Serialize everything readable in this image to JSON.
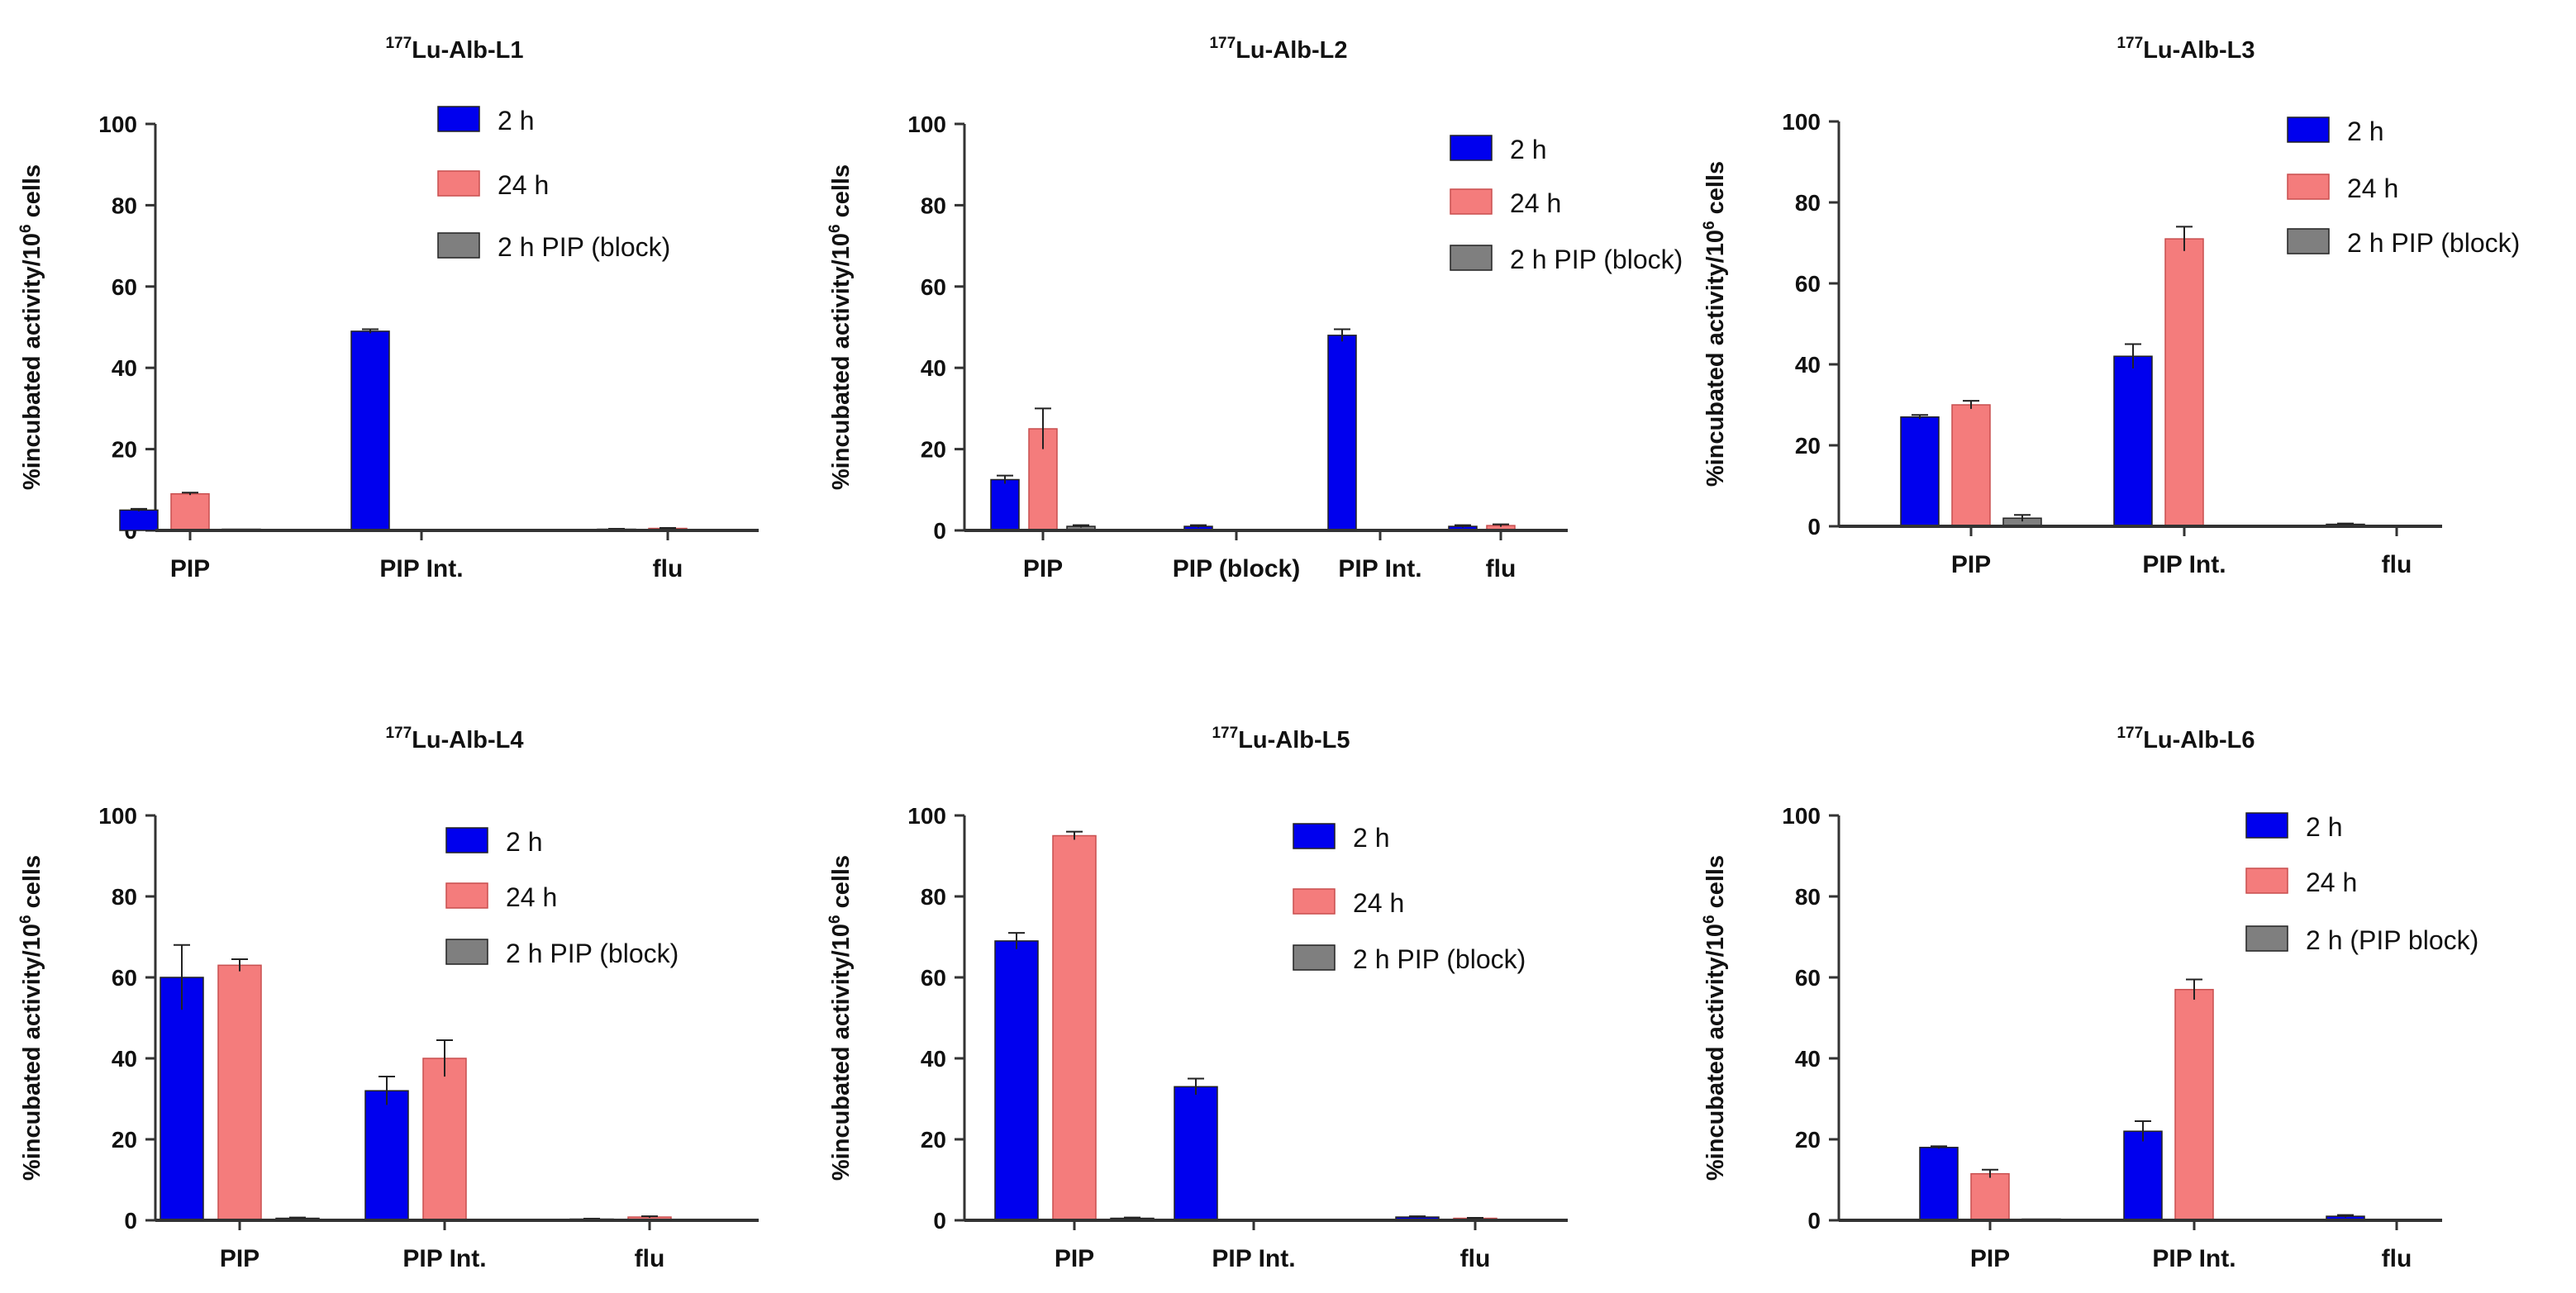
{
  "colors": {
    "h2": "#0000ee",
    "h24": "#f47c7c",
    "block": "#7f7f7f",
    "axis": "#333333"
  },
  "chart_data": [
    {
      "type": "bar",
      "title_prefix": "177",
      "title": "Lu-Alb-L1",
      "ylabel_main": "%incubated activity/10",
      "ylabel_sup": "6",
      "ylabel_tail": " cells",
      "ylim": [
        0,
        100
      ],
      "yticks": [
        "0",
        "20",
        "40",
        "60",
        "80",
        "100"
      ],
      "categories": [
        "PIP",
        "PIP Int.",
        "flu"
      ],
      "series": [
        {
          "name": "2 h",
          "values": [
            5,
            49,
            0.3
          ],
          "errors": [
            0.3,
            0.5,
            0.1
          ]
        },
        {
          "name": "24 h",
          "values": [
            9,
            0,
            0.5
          ],
          "errors": [
            0.3,
            0,
            0.1
          ]
        },
        {
          "name": "2 h PIP (block)",
          "values": [
            0.3,
            0,
            0
          ],
          "errors": [
            0,
            0,
            0
          ]
        }
      ],
      "legend": "top-right"
    },
    {
      "type": "bar",
      "title_prefix": "177",
      "title": "Lu-Alb-L2",
      "ylabel_main": "%incubated activity/10",
      "ylabel_sup": "6",
      "ylabel_tail": " cells",
      "ylim": [
        0,
        100
      ],
      "yticks": [
        "0",
        "20",
        "40",
        "60",
        "80",
        "100"
      ],
      "categories": [
        "PIP",
        "PIP (block)",
        "PIP Int.",
        "flu"
      ],
      "series": [
        {
          "name": "2 h",
          "values": [
            12.5,
            1,
            48,
            1
          ],
          "errors": [
            1,
            0.3,
            1.5,
            0.3
          ]
        },
        {
          "name": "24 h",
          "values": [
            25,
            0,
            0,
            1.2
          ],
          "errors": [
            5,
            0,
            0,
            0.3
          ]
        },
        {
          "name": "2 h PIP (block)",
          "values": [
            1,
            0,
            0,
            0
          ],
          "errors": [
            0.3,
            0,
            0,
            0
          ]
        }
      ],
      "legend": "top-right"
    },
    {
      "type": "bar",
      "title_prefix": "177",
      "title": "Lu-Alb-L3",
      "ylabel_main": "%incubated activity/10",
      "ylabel_sup": "6",
      "ylabel_tail": " cells",
      "ylim": [
        0,
        100
      ],
      "yticks": [
        "0",
        "20",
        "40",
        "60",
        "80",
        "100"
      ],
      "categories": [
        "PIP",
        "PIP Int.",
        "flu"
      ],
      "series": [
        {
          "name": "2 h",
          "values": [
            27,
            42,
            0.5
          ],
          "errors": [
            0.5,
            3,
            0.2
          ]
        },
        {
          "name": "24 h",
          "values": [
            30,
            71,
            0
          ],
          "errors": [
            1,
            3,
            0
          ]
        },
        {
          "name": "2 h PIP (block)",
          "values": [
            2,
            0,
            0
          ],
          "errors": [
            0.8,
            0,
            0
          ]
        }
      ],
      "legend": "top-right"
    },
    {
      "type": "bar",
      "title_prefix": "177",
      "title": "Lu-Alb-L4",
      "ylabel_main": "%incubated activity/10",
      "ylabel_sup": "6",
      "ylabel_tail": " cells",
      "ylim": [
        0,
        100
      ],
      "yticks": [
        "0",
        "20",
        "40",
        "60",
        "80",
        "100"
      ],
      "categories": [
        "PIP",
        "PIP Int.",
        "flu"
      ],
      "series": [
        {
          "name": "2 h",
          "values": [
            60,
            32,
            0.3
          ],
          "errors": [
            8,
            3.5,
            0.1
          ]
        },
        {
          "name": "24 h",
          "values": [
            63,
            40,
            0.8
          ],
          "errors": [
            1.5,
            4.5,
            0.2
          ]
        },
        {
          "name": "2 h PIP (block)",
          "values": [
            0.5,
            0,
            0
          ],
          "errors": [
            0.2,
            0,
            0
          ]
        }
      ],
      "legend": "top-right"
    },
    {
      "type": "bar",
      "title_prefix": "177",
      "title": "Lu-Alb-L5",
      "ylabel_main": "%incubated activity/10",
      "ylabel_sup": "6",
      "ylabel_tail": " cells",
      "ylim": [
        0,
        100
      ],
      "yticks": [
        "0",
        "20",
        "40",
        "60",
        "80",
        "100"
      ],
      "categories": [
        "PIP",
        "PIP Int.",
        "flu"
      ],
      "series": [
        {
          "name": "2 h",
          "values": [
            69,
            33,
            0.8
          ],
          "errors": [
            2,
            2,
            0.2
          ]
        },
        {
          "name": "24 h",
          "values": [
            95,
            0,
            0.5
          ],
          "errors": [
            1,
            0,
            0.1
          ]
        },
        {
          "name": "2 h PIP (block)",
          "values": [
            0.5,
            0,
            0
          ],
          "errors": [
            0.2,
            0,
            0
          ]
        }
      ],
      "legend": "top-right"
    },
    {
      "type": "bar",
      "title_prefix": "177",
      "title": "Lu-Alb-L6",
      "ylabel_main": "%incubated activity/10",
      "ylabel_sup": "6",
      "ylabel_tail": " cells",
      "ylim": [
        0,
        100
      ],
      "yticks": [
        "0",
        "20",
        "40",
        "60",
        "80",
        "100"
      ],
      "categories": [
        "PIP",
        "PIP Int.",
        "flu"
      ],
      "series": [
        {
          "name": "2 h",
          "values": [
            18,
            22,
            1
          ],
          "errors": [
            0.3,
            2.5,
            0.3
          ]
        },
        {
          "name": "24 h",
          "values": [
            11.5,
            57,
            0
          ],
          "errors": [
            1,
            2.5,
            0
          ]
        },
        {
          "name": "2 h (PIP block)",
          "values": [
            0.3,
            0,
            0
          ],
          "errors": [
            0,
            0,
            0
          ]
        }
      ],
      "legend": "top-right"
    }
  ]
}
